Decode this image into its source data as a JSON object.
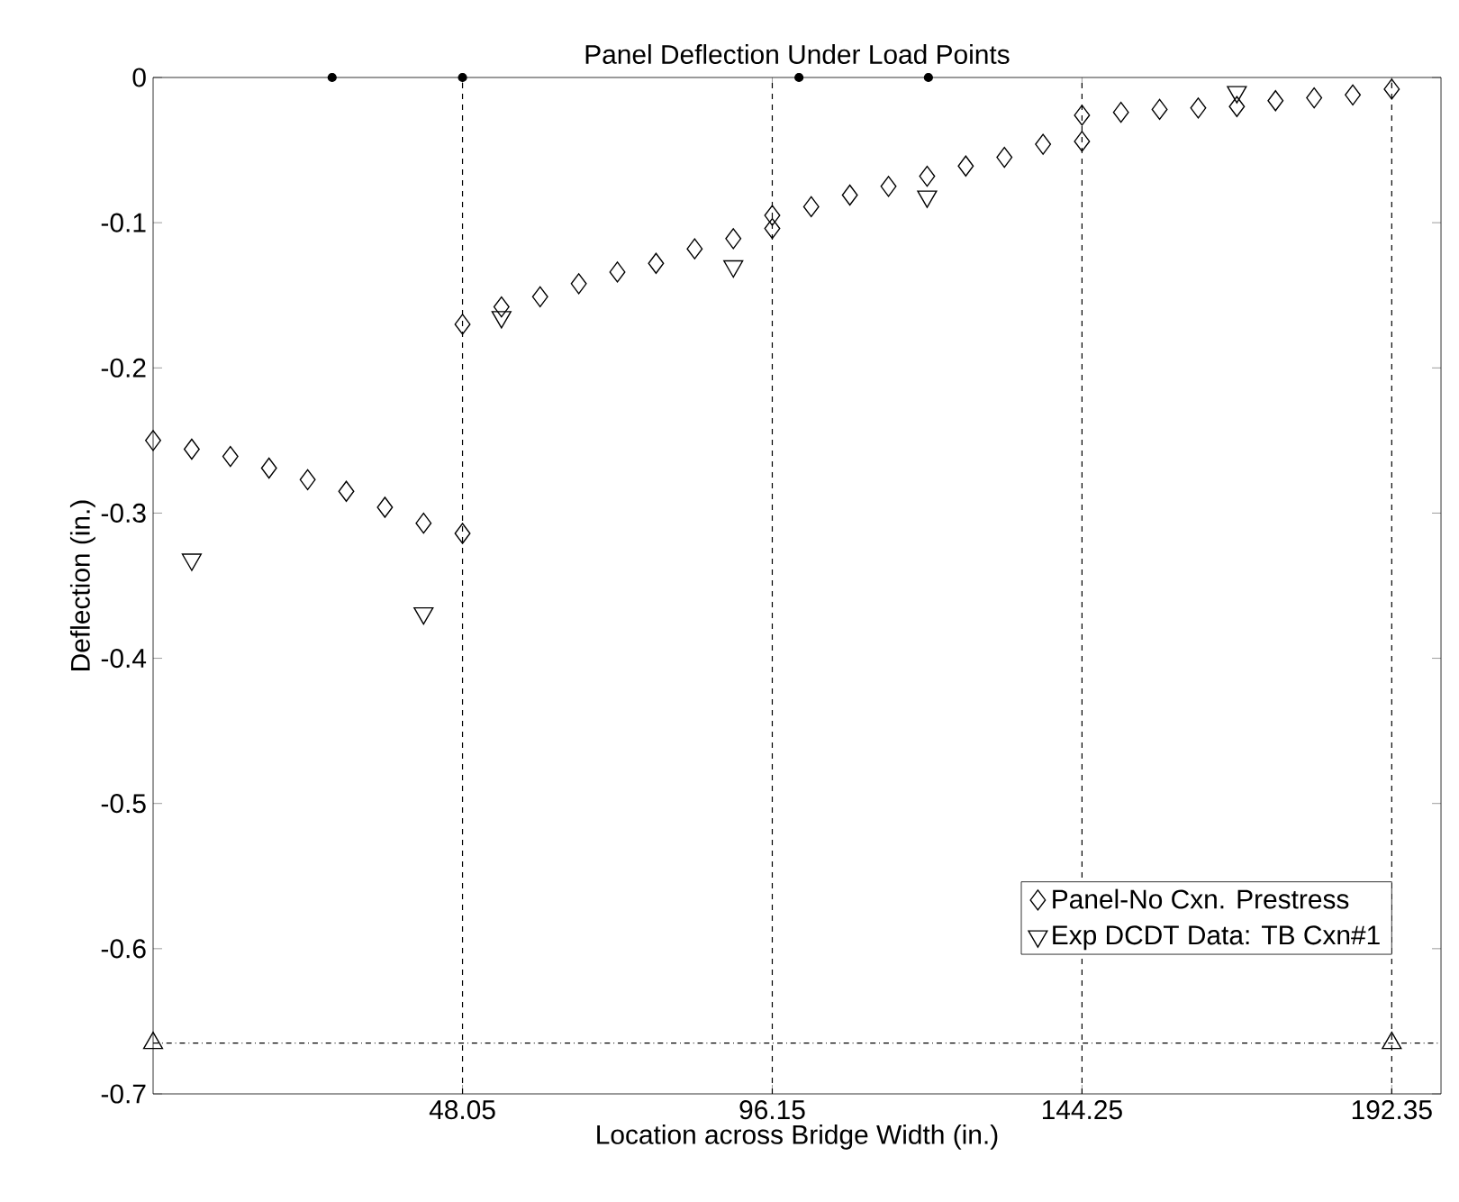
{
  "chart_data": {
    "type": "scatter",
    "title": "Panel Deflection Under Load Points",
    "xlabel": "Location across Bridge Width (in.)",
    "ylabel": "Deflection (in.)",
    "xlim": [
      0,
      200
    ],
    "ylim": [
      -0.7,
      0
    ],
    "xticks": [
      48.05,
      96.15,
      144.25,
      192.35
    ],
    "yticks": [
      0,
      -0.1,
      -0.2,
      -0.3,
      -0.4,
      -0.5,
      -0.6,
      -0.7
    ],
    "grid": "x",
    "legend": "bottom right",
    "series": [
      {
        "name": "Panel-No Cxn. Prestress",
        "color": "#000000",
        "marker": "diamond",
        "x": [
          0,
          6,
          12,
          18,
          24,
          30,
          36,
          42,
          48.05,
          48.05,
          54.1,
          60.1,
          66.1,
          72.1,
          78.1,
          84.1,
          90.1,
          96.15,
          96.15,
          102.2,
          108.2,
          114.2,
          120.2,
          126.2,
          132.2,
          138.2,
          144.25,
          144.25,
          150.3,
          156.3,
          162.3,
          168.3,
          174.3,
          180.3,
          186.3,
          192.35
        ],
        "values": [
          -0.25,
          -0.256,
          -0.261,
          -0.269,
          -0.277,
          -0.285,
          -0.296,
          -0.307,
          -0.314,
          -0.17,
          -0.158,
          -0.151,
          -0.142,
          -0.134,
          -0.128,
          -0.118,
          -0.111,
          -0.104,
          -0.095,
          -0.089,
          -0.081,
          -0.075,
          -0.068,
          -0.061,
          -0.055,
          -0.046,
          -0.044,
          -0.026,
          -0.024,
          -0.022,
          -0.021,
          -0.02,
          -0.016,
          -0.014,
          -0.012,
          -0.008
        ]
      },
      {
        "name": "Exp DCDT Data: TB Cxn#1",
        "color": "#000000",
        "marker": "triangle_down",
        "x": [
          6,
          42,
          54.1,
          90.1,
          120.2,
          168.3
        ],
        "values": [
          -0.332,
          -0.369,
          -0.165,
          -0.13,
          -0.082,
          -0.01
        ]
      },
      {
        "color": "#000000",
        "marker": "circle",
        "x": [
          27.8,
          48.05,
          100.3,
          120.4
        ],
        "values": [
          0,
          0,
          0,
          0
        ]
      },
      {
        "color": "#000000",
        "marker": "triangle",
        "x": [
          0,
          192.35
        ],
        "values": [
          -0.665,
          -0.665
        ]
      }
    ],
    "ref_lines": [
      {
        "axis": "y",
        "value": -0.665,
        "color": "#000000",
        "line_style": "dashdot"
      }
    ]
  }
}
